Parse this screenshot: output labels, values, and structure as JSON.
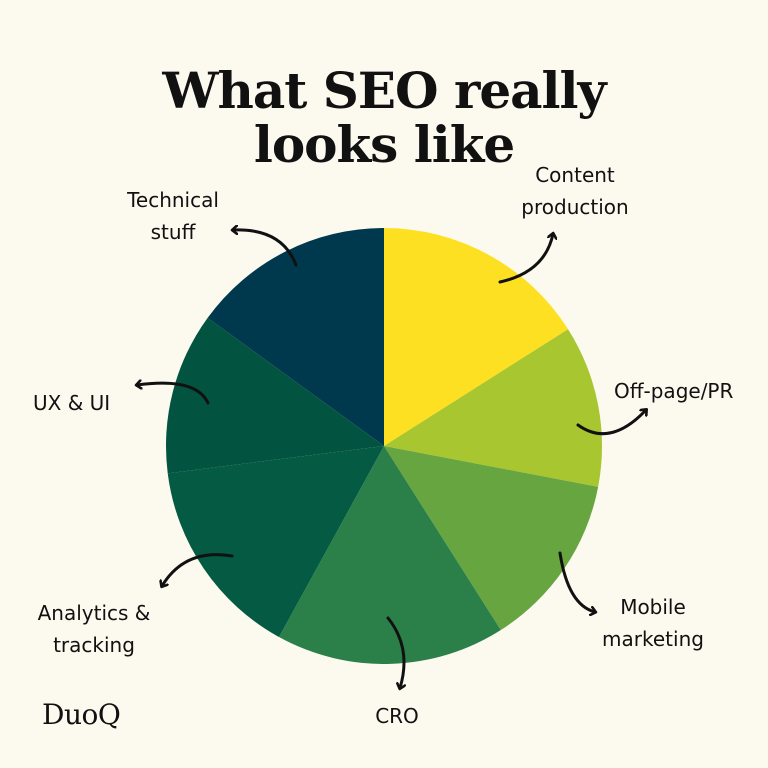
{
  "title_lines": [
    "What SEO really",
    "looks like"
  ],
  "brand": "DuoQ",
  "chart_data": {
    "type": "pie",
    "title": "What SEO really looks like",
    "categories": [
      "Content production",
      "Off-page/PR",
      "Mobile marketing",
      "CRO",
      "Analytics & tracking",
      "UX & UI",
      "Technical stuff"
    ],
    "values": [
      16,
      12,
      13,
      17,
      15,
      12,
      15
    ],
    "colors": [
      "#fde021",
      "#a7c62f",
      "#67a540",
      "#2b804a",
      "#045a42",
      "#02533f",
      "#00394e"
    ],
    "labels": [
      {
        "lines": [
          "Content",
          "production"
        ]
      },
      {
        "lines": [
          "Off-page/PR"
        ]
      },
      {
        "lines": [
          "Mobile",
          "marketing"
        ]
      },
      {
        "lines": [
          "CRO"
        ]
      },
      {
        "lines": [
          "Analytics &",
          "tracking"
        ]
      },
      {
        "lines": [
          "UX & UI"
        ]
      },
      {
        "lines": [
          "Technical",
          "stuff"
        ]
      }
    ]
  }
}
